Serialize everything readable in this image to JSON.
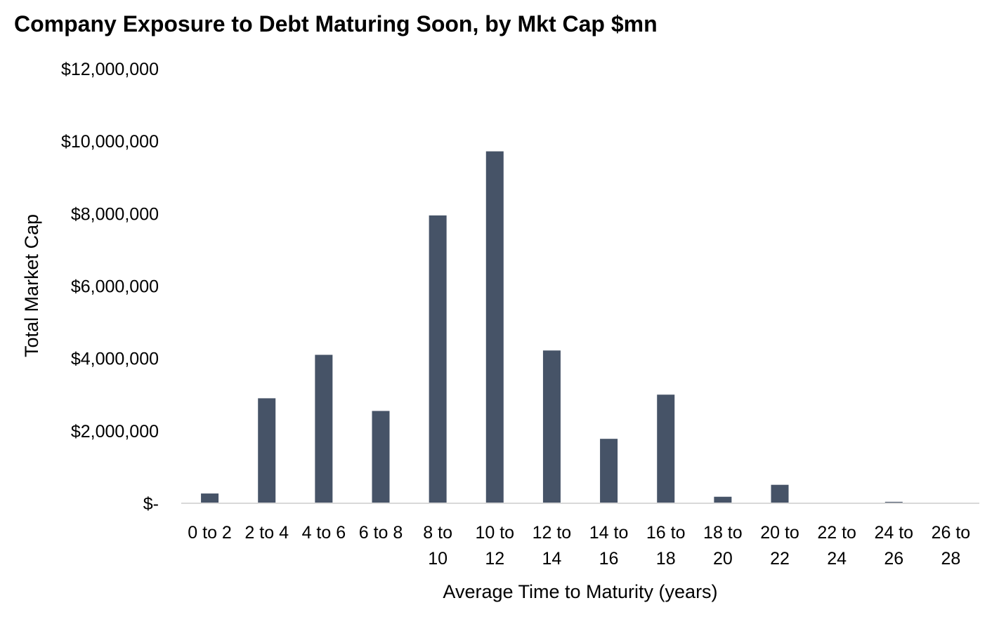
{
  "chart_data": {
    "type": "bar",
    "title": "Company Exposure to Debt Maturing Soon, by Mkt Cap $mn",
    "xlabel": "Average Time to Maturity (years)",
    "ylabel": "Total Market Cap",
    "categories": [
      [
        "0 to 2"
      ],
      [
        "2 to 4"
      ],
      [
        "4 to 6"
      ],
      [
        "6 to 8"
      ],
      [
        "8 to",
        "10"
      ],
      [
        "10 to",
        "12"
      ],
      [
        "12 to",
        "14"
      ],
      [
        "14 to",
        "16"
      ],
      [
        "16 to",
        "18"
      ],
      [
        "18 to",
        "20"
      ],
      [
        "20 to",
        "22"
      ],
      [
        "22 to",
        "24"
      ],
      [
        "24 to",
        "26"
      ],
      [
        "26 to",
        "28"
      ]
    ],
    "values": [
      270000,
      2900000,
      4100000,
      2550000,
      7950000,
      9720000,
      4220000,
      1780000,
      3000000,
      180000,
      510000,
      0,
      40000,
      0
    ],
    "ylim": [
      0,
      12000000
    ],
    "yticks": [
      0,
      2000000,
      4000000,
      6000000,
      8000000,
      10000000,
      12000000
    ],
    "ytick_labels": [
      "$-",
      "$2,000,000",
      "$4,000,000",
      "$6,000,000",
      "$8,000,000",
      "$10,000,000",
      "$12,000,000"
    ],
    "grid": false,
    "legend": "none",
    "bar_color": "#465367",
    "axis_color": "#d9d9d9"
  }
}
